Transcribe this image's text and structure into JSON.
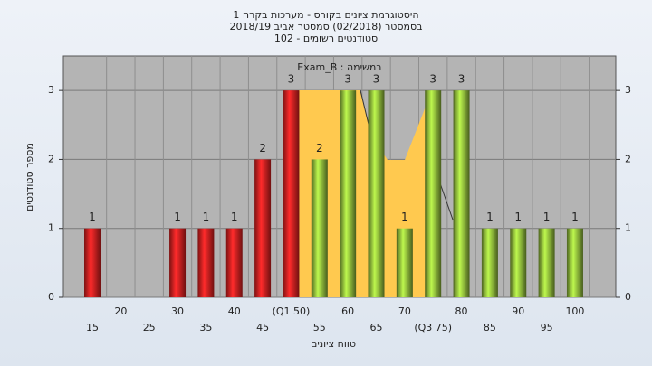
{
  "chart_data": {
    "type": "bar",
    "title_lines": [
      "היסטוגרמת ציונים בקורס - מערכות בקרה 1",
      "בסמסטר  (02/2018)  סמסטר אביב 2018/19",
      "סטודנטים רשומים - 102"
    ],
    "subtitle": "במשימה : Exam_B",
    "x_label": "טווח ציונים",
    "y_label": "מספר סטודנטים",
    "categories": [
      "15",
      "20",
      "25",
      "30",
      "35",
      "40",
      "45",
      "(Q1 50)",
      "55",
      "60",
      "65",
      "70",
      "(Q3 75)",
      "80",
      "85",
      "90",
      "95",
      "100"
    ],
    "values": [
      1,
      0,
      0,
      1,
      1,
      1,
      2,
      3,
      2,
      3,
      3,
      1,
      3,
      3,
      1,
      1,
      1,
      1
    ],
    "colors": [
      "#e02020",
      "#e02020",
      "#e02020",
      "#e02020",
      "#e02020",
      "#e02020",
      "#e02020",
      "#e02020",
      "#8db83a",
      "#8db83a",
      "#8db83a",
      "#8db83a",
      "#8db83a",
      "#8db83a",
      "#8db83a",
      "#8db83a",
      "#8db83a",
      "#8db83a"
    ],
    "ylim": [
      0,
      3.5
    ],
    "yticks": [
      0,
      1,
      2,
      3
    ],
    "y2lim": [
      0,
      3.5
    ],
    "y2ticks": [
      0,
      1,
      2,
      3
    ],
    "grid": true
  }
}
